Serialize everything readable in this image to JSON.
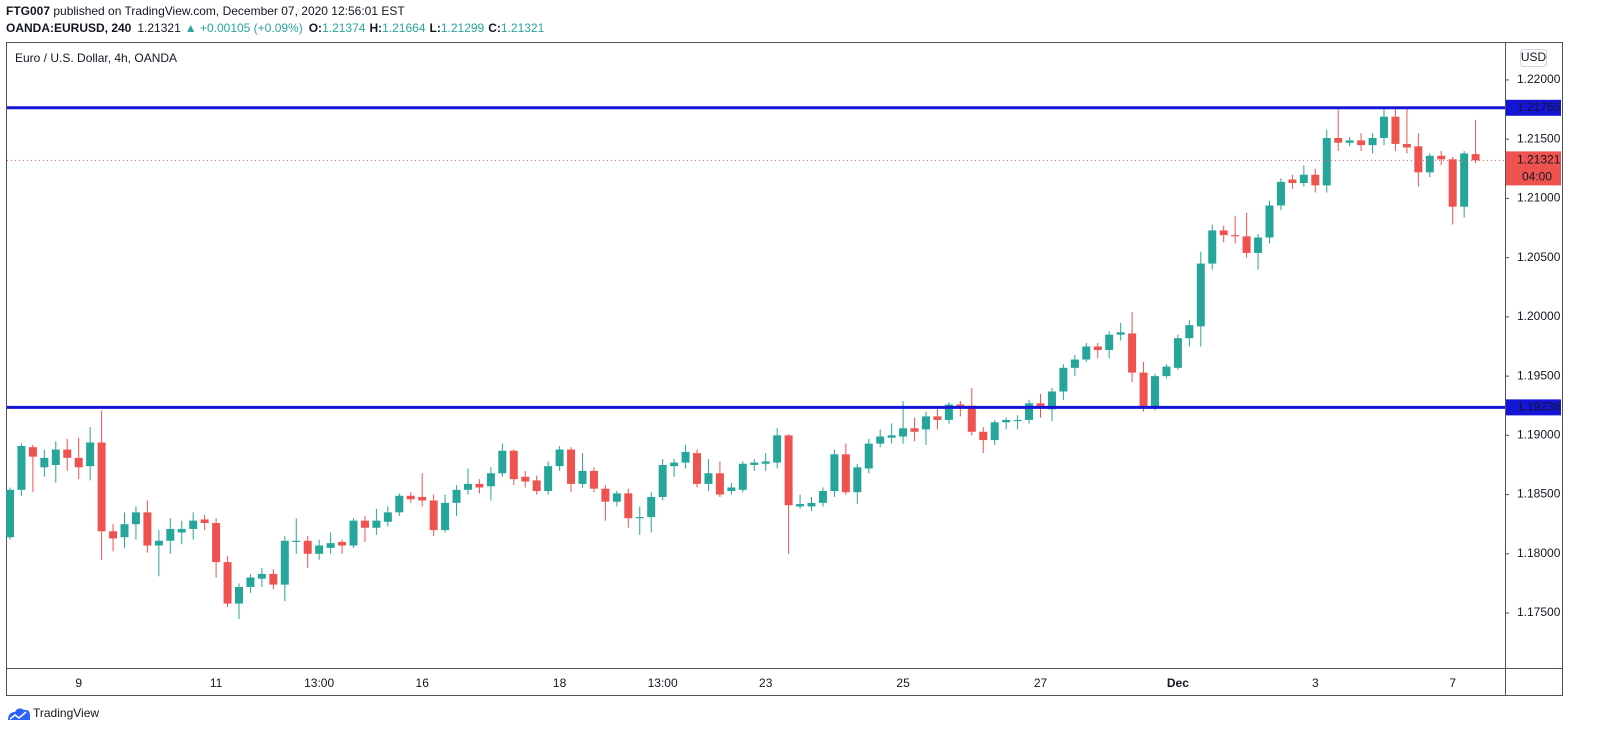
{
  "chart_data": {
    "type": "candlestick",
    "publisher": "FTG007",
    "published_text": " published on TradingView.com, December 07, 2020 12:56:01 EST",
    "symbol_text": "OANDA:EURUSD, 240",
    "change_text": "▲ +0.00105 (+0.09%)",
    "open_prefix": "O:",
    "high_prefix": "H:",
    "low_prefix": "L:",
    "close_prefix": "C:",
    "title": "Euro / U.S. Dollar, 4h, OANDA",
    "currency": "USD",
    "timer": "04:00",
    "brand": "TradingView",
    "up_color": "#26a69a",
    "down_color": "#ef5350",
    "level_color": "#1515d8",
    "categories": [
      null,
      null,
      null,
      null,
      null,
      null,
      "9",
      null,
      null,
      null,
      null,
      null,
      null,
      null,
      null,
      null,
      null,
      null,
      "11",
      null,
      null,
      null,
      null,
      null,
      null,
      null,
      null,
      "13:00",
      null,
      null,
      null,
      null,
      null,
      null,
      null,
      null,
      "16",
      null,
      null,
      null,
      null,
      null,
      null,
      null,
      null,
      null,
      null,
      null,
      "18",
      null,
      null,
      null,
      null,
      null,
      null,
      null,
      null,
      "13:00",
      null,
      null,
      null,
      null,
      null,
      null,
      null,
      null,
      "23",
      null,
      null,
      null,
      null,
      null,
      null,
      null,
      null,
      null,
      null,
      null,
      "25",
      null,
      null,
      null,
      null,
      null,
      null,
      null,
      null,
      null,
      null,
      null,
      "27",
      null,
      null,
      null,
      null,
      null,
      null,
      null,
      null,
      null,
      null,
      null,
      "Dec",
      null,
      null,
      null,
      null,
      null,
      null,
      null,
      null,
      null,
      null,
      null,
      "3",
      null,
      null,
      null,
      null,
      null,
      null,
      null,
      null,
      null,
      null,
      null,
      "7",
      null,
      null
    ],
    "open": [
      1.1814,
      1.1854,
      1.189,
      1.1873,
      1.1875,
      1.1888,
      1.1881,
      1.1874,
      1.1894,
      1.1819,
      1.1814,
      1.1825,
      1.1835,
      1.1807,
      1.1811,
      1.1818,
      1.1821,
      1.1829,
      1.1826,
      1.1793,
      1.1758,
      1.1772,
      1.1779,
      1.1783,
      1.1774,
      1.181,
      1.1811,
      1.18,
      1.1805,
      1.181,
      1.1807,
      1.1828,
      1.1822,
      1.1827,
      1.1835,
      1.1849,
      1.1848,
      1.1845,
      1.182,
      1.1843,
      1.1854,
      1.1859,
      1.1857,
      1.1868,
      1.1887,
      1.1865,
      1.1862,
      1.1853,
      1.1874,
      1.1888,
      1.1859,
      1.187,
      1.1855,
      1.1844,
      1.1851,
      1.183,
      1.1831,
      1.1848,
      1.1874,
      1.1877,
      1.1885,
      1.1859,
      1.1868,
      1.1853,
      1.1854,
      1.1875,
      1.1876,
      1.1877,
      1.19,
      1.184,
      1.184,
      1.1843,
      1.1853,
      1.1884,
      1.1852,
      1.1872,
      1.1893,
      1.1898,
      1.1899,
      1.1906,
      1.1905,
      1.1916,
      1.1913,
      1.1926,
      1.1925,
      1.1903,
      1.1896,
      1.1911,
      1.1912,
      1.1913,
      1.1927,
      1.1922,
      1.1937,
      1.1957,
      1.1964,
      1.1975,
      1.1972,
      1.1985,
      1.1986,
      1.1953,
      1.1924,
      1.195,
      1.1957,
      1.1982,
      1.1992,
      1.2045,
      1.2073,
      1.2069,
      1.2068,
      1.2054,
      1.2067,
      1.2094,
      1.2116,
      1.2113,
      1.212,
      1.2111,
      1.2151,
      1.2147,
      1.2149,
      1.2145,
      1.2151,
      1.2169,
      1.2146,
      1.2144,
      1.2122,
      1.2136,
      1.2133,
      1.2093,
      1.21374
    ],
    "high": [
      1.1856,
      1.1893,
      1.1892,
      1.1888,
      1.1895,
      1.1897,
      1.1898,
      1.1907,
      1.1921,
      1.1825,
      1.1835,
      1.184,
      1.1845,
      1.182,
      1.183,
      1.1828,
      1.1835,
      1.1833,
      1.183,
      1.1798,
      1.1775,
      1.1783,
      1.1788,
      1.1787,
      1.1815,
      1.183,
      1.1815,
      1.1812,
      1.1818,
      1.1812,
      1.183,
      1.1832,
      1.1838,
      1.184,
      1.1851,
      1.1852,
      1.1868,
      1.185,
      1.185,
      1.1858,
      1.1872,
      1.1863,
      1.1873,
      1.1893,
      1.1888,
      1.187,
      1.1866,
      1.1878,
      1.1891,
      1.189,
      1.1885,
      1.1873,
      1.1858,
      1.1853,
      1.1855,
      1.184,
      1.1852,
      1.188,
      1.188,
      1.1892,
      1.1888,
      1.188,
      1.1878,
      1.186,
      1.1878,
      1.188,
      1.1885,
      1.1906,
      1.1901,
      1.185,
      1.1848,
      1.1856,
      1.1888,
      1.1893,
      1.1876,
      1.1897,
      1.1905,
      1.191,
      1.1929,
      1.1915,
      1.192,
      1.1924,
      1.1928,
      1.1929,
      1.194,
      1.1907,
      1.1913,
      1.1915,
      1.1917,
      1.193,
      1.1935,
      1.194,
      1.196,
      1.1968,
      1.1978,
      1.1978,
      1.1988,
      1.1995,
      1.2004,
      1.1962,
      1.1952,
      1.196,
      1.1985,
      1.1997,
      1.2055,
      1.2078,
      1.2077,
      1.2085,
      1.2088,
      1.207,
      1.2098,
      1.2117,
      1.212,
      1.2128,
      1.2125,
      1.2158,
      1.2177,
      1.2152,
      1.2155,
      1.2155,
      1.2176,
      1.2177,
      1.2176,
      1.2155,
      1.2138,
      1.214,
      1.2135,
      1.214,
      1.21664
    ],
    "low": [
      1.1812,
      1.1849,
      1.1852,
      1.1865,
      1.186,
      1.187,
      1.1863,
      1.1862,
      1.1795,
      1.1802,
      1.1805,
      1.1812,
      1.1801,
      1.1781,
      1.18,
      1.1808,
      1.1812,
      1.182,
      1.178,
      1.1755,
      1.1745,
      1.1767,
      1.1772,
      1.177,
      1.176,
      1.18,
      1.1788,
      1.1795,
      1.18,
      1.18,
      1.1805,
      1.181,
      1.1816,
      1.1823,
      1.1832,
      1.1843,
      1.184,
      1.1815,
      1.1818,
      1.1832,
      1.185,
      1.1851,
      1.1845,
      1.1865,
      1.1858,
      1.1856,
      1.185,
      1.185,
      1.187,
      1.1852,
      1.1856,
      1.1852,
      1.1828,
      1.184,
      1.1822,
      1.1816,
      1.1818,
      1.1845,
      1.1865,
      1.1872,
      1.1856,
      1.1853,
      1.1848,
      1.185,
      1.1852,
      1.187,
      1.187,
      1.1872,
      1.18,
      1.1838,
      1.1836,
      1.184,
      1.1848,
      1.185,
      1.1842,
      1.1868,
      1.189,
      1.1893,
      1.1893,
      1.1895,
      1.1892,
      1.1905,
      1.191,
      1.1916,
      1.19,
      1.1885,
      1.1892,
      1.1905,
      1.1905,
      1.191,
      1.1915,
      1.1912,
      1.193,
      1.195,
      1.1962,
      1.1965,
      1.1965,
      1.198,
      1.1945,
      1.192,
      1.1921,
      1.1948,
      1.1955,
      1.1975,
      1.1975,
      1.204,
      1.2063,
      1.2062,
      1.205,
      1.204,
      1.2062,
      1.209,
      1.2108,
      1.211,
      1.2105,
      1.2105,
      1.214,
      1.2144,
      1.214,
      1.2138,
      1.2145,
      1.214,
      1.2138,
      1.211,
      1.2118,
      1.2128,
      1.2078,
      1.2084,
      1.21299
    ],
    "close": [
      1.1854,
      1.1891,
      1.1882,
      1.1881,
      1.1888,
      1.1881,
      1.1873,
      1.1894,
      1.1819,
      1.1813,
      1.1825,
      1.1835,
      1.1807,
      1.1811,
      1.1821,
      1.1821,
      1.1828,
      1.1826,
      1.1793,
      1.1758,
      1.1772,
      1.178,
      1.1783,
      1.1774,
      1.1811,
      1.1811,
      1.18,
      1.1807,
      1.1809,
      1.1807,
      1.1828,
      1.1822,
      1.1828,
      1.1835,
      1.1849,
      1.1846,
      1.1845,
      1.182,
      1.1843,
      1.1854,
      1.1859,
      1.1856,
      1.1868,
      1.1887,
      1.1863,
      1.1861,
      1.1853,
      1.1874,
      1.1888,
      1.1859,
      1.187,
      1.1855,
      1.1844,
      1.1851,
      1.183,
      1.1831,
      1.1848,
      1.1875,
      1.1877,
      1.1886,
      1.1859,
      1.1868,
      1.185,
      1.1856,
      1.1876,
      1.1877,
      1.1878,
      1.19,
      1.1841,
      1.1842,
      1.1843,
      1.1853,
      1.1884,
      1.1852,
      1.1873,
      1.1893,
      1.1899,
      1.19,
      1.1906,
      1.1903,
      1.1916,
      1.1913,
      1.1926,
      1.1924,
      1.1903,
      1.1896,
      1.1911,
      1.1913,
      1.1913,
      1.1927,
      1.1923,
      1.1937,
      1.1957,
      1.1964,
      1.1975,
      1.1972,
      1.1985,
      1.1987,
      1.1953,
      1.1924,
      1.195,
      1.1958,
      1.1982,
      1.1993,
      1.2045,
      1.2073,
      1.2069,
      1.2068,
      1.2054,
      1.2067,
      1.2094,
      1.2114,
      1.2113,
      1.212,
      1.2111,
      1.2151,
      1.2147,
      1.2149,
      1.2145,
      1.2151,
      1.2169,
      1.2146,
      1.2143,
      1.2122,
      1.2136,
      1.2133,
      1.2093,
      1.2138,
      1.21321
    ],
    "levels": [
      1.21765,
      1.19236
    ],
    "ylim": [
      1.17036,
      1.22312
    ],
    "yticks": [
      {
        "value": 1.175,
        "label": "1.17500"
      },
      {
        "value": 1.18,
        "label": "1.18000"
      },
      {
        "value": 1.185,
        "label": "1.18500"
      },
      {
        "value": 1.19,
        "label": "1.19000"
      },
      {
        "value": 1.195,
        "label": "1.19500"
      },
      {
        "value": 1.2,
        "label": "1.20000"
      },
      {
        "value": 1.205,
        "label": "1.20500"
      },
      {
        "value": 1.21,
        "label": "1.21000"
      },
      {
        "value": 1.215,
        "label": "1.21500"
      },
      {
        "value": 1.22,
        "label": "1.22000"
      }
    ],
    "grid": false
  }
}
